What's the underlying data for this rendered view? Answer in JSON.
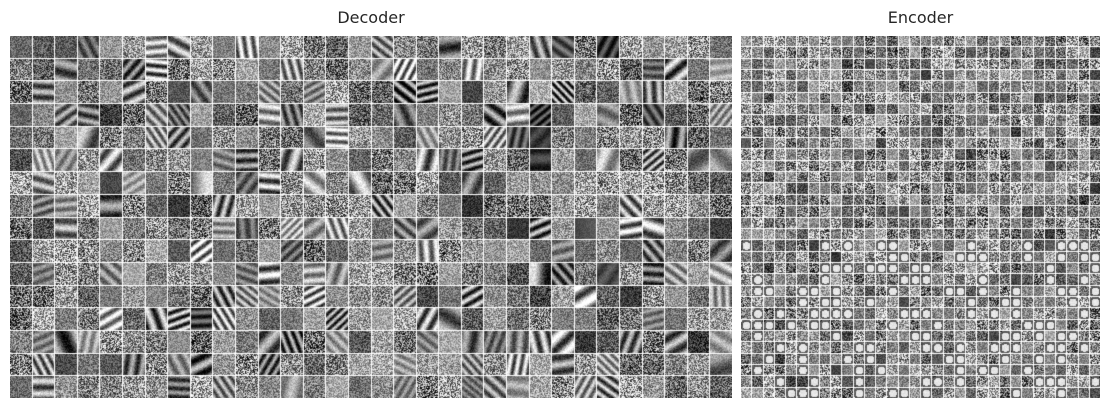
{
  "figures": {
    "decoder": {
      "title": "Decoder",
      "grid": {
        "cols": 32,
        "rows": 16
      },
      "texture": "grayscale-filters"
    },
    "encoder": {
      "title": "Encoder",
      "grid": {
        "cols": 32,
        "rows": 32
      },
      "texture": "grayscale-noise-with-blobs"
    }
  },
  "colors": {
    "background": "#ffffff",
    "title_text": "#262626",
    "tile_gap": "#ffffff"
  }
}
